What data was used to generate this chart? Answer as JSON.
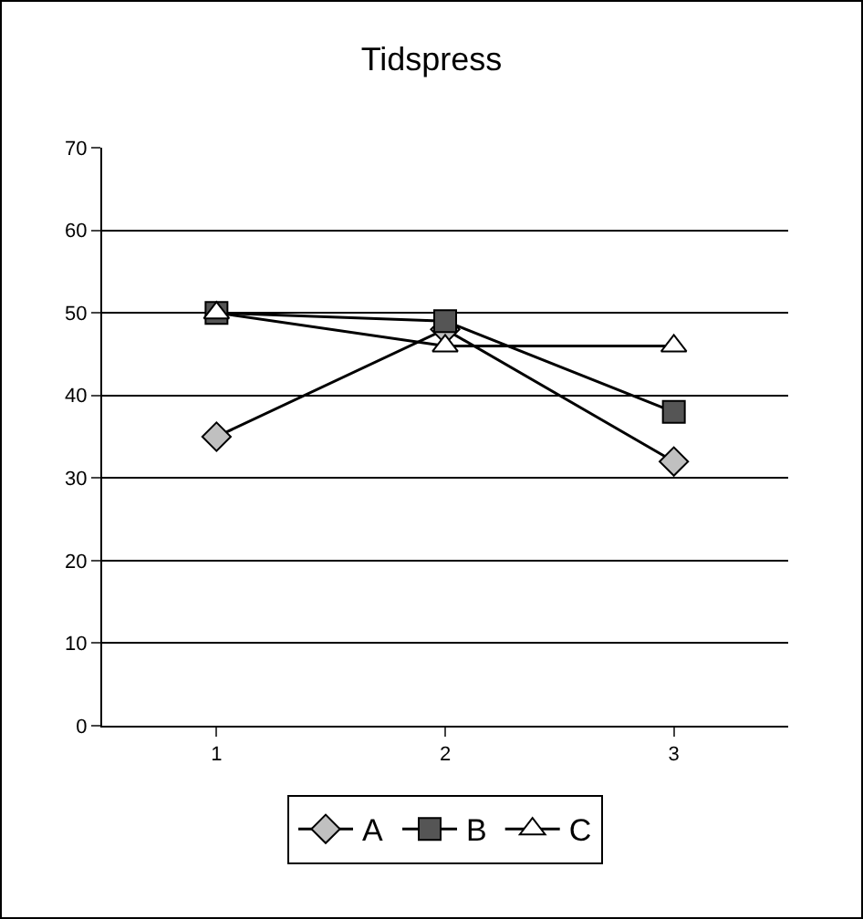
{
  "chart_data": {
    "type": "line",
    "title": "Tidspress",
    "categories": [
      "1",
      "2",
      "3"
    ],
    "series": [
      {
        "name": "A",
        "color": "#c0c0c0",
        "marker": "diamond",
        "values": [
          35,
          48,
          32
        ]
      },
      {
        "name": "B",
        "color": "#555555",
        "marker": "square",
        "values": [
          50,
          49,
          38
        ]
      },
      {
        "name": "C",
        "color": "#ffffff",
        "marker": "triangle",
        "values": [
          50,
          46,
          46
        ]
      }
    ],
    "ylim": [
      0,
      70
    ],
    "yticks": [
      0,
      10,
      20,
      30,
      40,
      50,
      60,
      70
    ],
    "grid": "y",
    "legend": "bottom",
    "line_style": "solid"
  }
}
